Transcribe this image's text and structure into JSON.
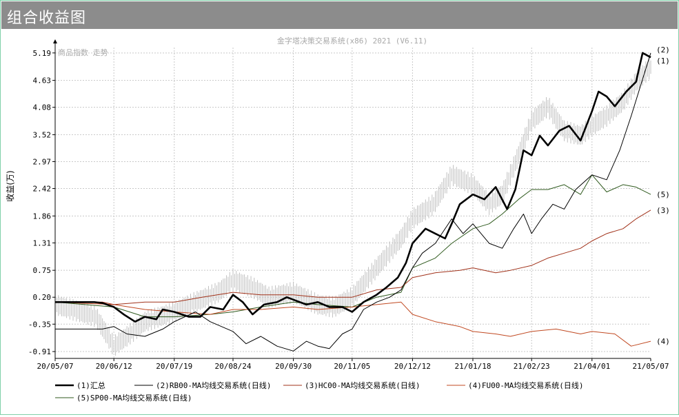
{
  "window": {
    "title": "组合收益图"
  },
  "chart_data": {
    "type": "line",
    "title": "金字塔决策交易系统(x86) 2021 (V6.11)",
    "subtitle": "商品指数 走势",
    "ylabel": "收益(万)",
    "ylim": [
      -1.05,
      5.3
    ],
    "yticks": [
      "5.19",
      "4.63",
      "4.08",
      "3.52",
      "2.97",
      "2.42",
      "1.86",
      "1.31",
      "0.75",
      "0.20",
      "-0.35",
      "-0.91"
    ],
    "xlim": [
      "2020-05-07",
      "2021-05-07"
    ],
    "xticks": [
      {
        "label": "20/05/07",
        "date": "2020-05-07"
      },
      {
        "label": "20/06/12",
        "date": "2020-06-12"
      },
      {
        "label": "20/07/19",
        "date": "2020-07-19"
      },
      {
        "label": "20/08/24",
        "date": "2020-08-24"
      },
      {
        "label": "20/09/30",
        "date": "2020-09-30"
      },
      {
        "label": "20/11/05",
        "date": "2020-11-05"
      },
      {
        "label": "20/12/12",
        "date": "2020-12-12"
      },
      {
        "label": "21/01/18",
        "date": "2021-01-18"
      },
      {
        "label": "21/02/23",
        "date": "2021-02-23"
      },
      {
        "label": "21/04/01",
        "date": "2021-04-01"
      },
      {
        "label": "21/05/07",
        "date": "2021-05-07"
      }
    ],
    "grid": true,
    "legend_position": "bottom",
    "index_series": {
      "color": "#c0c0c0",
      "x": [
        "2020-05-07",
        "2020-06-01",
        "2020-06-12",
        "2020-06-20",
        "2020-07-01",
        "2020-07-19",
        "2020-08-01",
        "2020-08-15",
        "2020-08-24",
        "2020-09-05",
        "2020-09-15",
        "2020-09-30",
        "2020-10-15",
        "2020-10-25",
        "2020-11-05",
        "2020-11-15",
        "2020-11-25",
        "2020-12-05",
        "2020-12-12",
        "2020-12-25",
        "2021-01-05",
        "2021-01-18",
        "2021-01-28",
        "2021-02-05",
        "2021-02-15",
        "2021-02-23",
        "2021-03-05",
        "2021-03-15",
        "2021-03-25",
        "2021-04-01",
        "2021-04-10",
        "2021-04-20",
        "2021-04-28",
        "2021-05-07"
      ],
      "y": [
        0.05,
        -0.2,
        -0.8,
        -0.6,
        -0.3,
        -0.1,
        0.1,
        0.3,
        0.55,
        0.4,
        0.2,
        0.3,
        0.05,
        0.0,
        0.2,
        0.6,
        1.0,
        1.4,
        1.8,
        2.1,
        2.7,
        2.5,
        2.1,
        2.3,
        3.1,
        3.8,
        4.1,
        3.6,
        3.5,
        3.7,
        3.9,
        4.2,
        4.6,
        4.9
      ]
    },
    "series": [
      {
        "name": "(1)汇总",
        "end_label": "(1)",
        "color": "#000000",
        "width": 2.6,
        "x": [
          "2020-05-07",
          "2020-05-31",
          "2020-06-05",
          "2020-06-12",
          "2020-06-18",
          "2020-06-25",
          "2020-07-01",
          "2020-07-08",
          "2020-07-12",
          "2020-07-19",
          "2020-07-28",
          "2020-08-04",
          "2020-08-10",
          "2020-08-18",
          "2020-08-24",
          "2020-08-30",
          "2020-09-05",
          "2020-09-12",
          "2020-09-20",
          "2020-09-26",
          "2020-09-30",
          "2020-10-08",
          "2020-10-15",
          "2020-10-22",
          "2020-10-30",
          "2020-11-05",
          "2020-11-12",
          "2020-11-20",
          "2020-11-26",
          "2020-12-03",
          "2020-12-08",
          "2020-12-12",
          "2020-12-20",
          "2020-12-26",
          "2021-01-01",
          "2021-01-05",
          "2021-01-10",
          "2021-01-18",
          "2021-01-25",
          "2021-02-01",
          "2021-02-08",
          "2021-02-13",
          "2021-02-18",
          "2021-02-23",
          "2021-02-28",
          "2021-03-05",
          "2021-03-12",
          "2021-03-18",
          "2021-03-25",
          "2021-04-01",
          "2021-04-05",
          "2021-04-10",
          "2021-04-15",
          "2021-04-22",
          "2021-04-28",
          "2021-05-02",
          "2021-05-07"
        ],
        "y": [
          0.1,
          0.1,
          0.08,
          0.0,
          -0.15,
          -0.3,
          -0.2,
          -0.25,
          -0.05,
          -0.1,
          -0.2,
          -0.2,
          0.0,
          -0.05,
          0.25,
          0.1,
          -0.15,
          0.05,
          0.1,
          0.2,
          0.15,
          0.05,
          0.1,
          0.0,
          0.0,
          -0.1,
          0.1,
          0.25,
          0.4,
          0.6,
          0.9,
          1.3,
          1.6,
          1.5,
          1.4,
          1.7,
          2.1,
          2.3,
          2.2,
          2.45,
          2.0,
          2.4,
          3.2,
          3.1,
          3.5,
          3.3,
          3.6,
          3.7,
          3.4,
          4.0,
          4.4,
          4.3,
          4.1,
          4.4,
          4.6,
          5.19,
          5.1
        ]
      },
      {
        "name": "(2)RB00-MA均线交易系统(日线)",
        "end_label": "(2)",
        "color": "#000000",
        "width": 1,
        "x": [
          "2020-05-07",
          "2020-06-05",
          "2020-06-12",
          "2020-06-20",
          "2020-07-01",
          "2020-07-12",
          "2020-07-19",
          "2020-08-01",
          "2020-08-10",
          "2020-08-24",
          "2020-09-01",
          "2020-09-10",
          "2020-09-20",
          "2020-09-30",
          "2020-10-08",
          "2020-10-15",
          "2020-10-22",
          "2020-10-30",
          "2020-11-05",
          "2020-11-12",
          "2020-11-20",
          "2020-11-28",
          "2020-12-05",
          "2020-12-12",
          "2020-12-18",
          "2020-12-26",
          "2021-01-05",
          "2021-01-12",
          "2021-01-18",
          "2021-01-28",
          "2021-02-05",
          "2021-02-12",
          "2021-02-18",
          "2021-02-23",
          "2021-03-01",
          "2021-03-08",
          "2021-03-15",
          "2021-03-22",
          "2021-04-01",
          "2021-04-10",
          "2021-04-18",
          "2021-04-25",
          "2021-05-07"
        ],
        "y": [
          -0.45,
          -0.45,
          -0.4,
          -0.55,
          -0.6,
          -0.45,
          -0.3,
          -0.1,
          -0.3,
          -0.5,
          -0.75,
          -0.6,
          -0.8,
          -0.9,
          -0.7,
          -0.8,
          -0.85,
          -0.55,
          -0.45,
          -0.05,
          0.1,
          0.2,
          0.35,
          0.8,
          1.1,
          1.3,
          1.8,
          1.5,
          1.7,
          1.3,
          1.2,
          1.6,
          1.9,
          1.5,
          1.8,
          2.1,
          2.0,
          2.4,
          2.7,
          2.6,
          3.2,
          3.9,
          5.19
        ]
      },
      {
        "name": "(3)HC00-MA均线交易系统(日线)",
        "end_label": "(3)",
        "color": "#a03018",
        "width": 1,
        "x": [
          "2020-05-07",
          "2020-06-05",
          "2020-06-12",
          "2020-07-01",
          "2020-07-19",
          "2020-08-05",
          "2020-08-24",
          "2020-09-10",
          "2020-09-30",
          "2020-10-15",
          "2020-11-05",
          "2020-11-20",
          "2020-12-05",
          "2020-12-12",
          "2020-12-26",
          "2021-01-10",
          "2021-01-18",
          "2021-02-01",
          "2021-02-10",
          "2021-02-23",
          "2021-03-05",
          "2021-03-15",
          "2021-03-25",
          "2021-04-01",
          "2021-04-10",
          "2021-04-20",
          "2021-04-28",
          "2021-05-07"
        ],
        "y": [
          0.1,
          0.1,
          0.05,
          0.1,
          0.1,
          0.2,
          0.3,
          0.25,
          0.25,
          0.2,
          0.2,
          0.35,
          0.4,
          0.6,
          0.7,
          0.75,
          0.8,
          0.7,
          0.75,
          0.85,
          1.0,
          1.1,
          1.2,
          1.35,
          1.5,
          1.6,
          1.8,
          1.98
        ]
      },
      {
        "name": "(4)FU00-MA均线交易系统(日线)",
        "end_label": "(4)",
        "color": "#c04820",
        "width": 1,
        "x": [
          "2020-05-07",
          "2020-06-12",
          "2020-07-01",
          "2020-07-19",
          "2020-08-10",
          "2020-08-24",
          "2020-09-10",
          "2020-09-30",
          "2020-10-15",
          "2020-11-05",
          "2020-11-20",
          "2020-12-05",
          "2020-12-12",
          "2020-12-26",
          "2021-01-10",
          "2021-01-18",
          "2021-02-01",
          "2021-02-10",
          "2021-02-23",
          "2021-03-10",
          "2021-03-25",
          "2021-04-01",
          "2021-04-15",
          "2021-04-25",
          "2021-05-07"
        ],
        "y": [
          0.1,
          0.05,
          -0.05,
          -0.1,
          -0.15,
          -0.05,
          -0.05,
          0.0,
          -0.05,
          0.0,
          0.05,
          0.1,
          -0.15,
          -0.3,
          -0.4,
          -0.5,
          -0.55,
          -0.6,
          -0.5,
          -0.45,
          -0.55,
          -0.5,
          -0.55,
          -0.8,
          -0.7
        ]
      },
      {
        "name": "(5)SP00-MA均线交易系统(日线)",
        "end_label": "(5)",
        "color": "#2f5a1e",
        "width": 1,
        "x": [
          "2020-05-07",
          "2020-06-12",
          "2020-07-01",
          "2020-07-19",
          "2020-08-10",
          "2020-08-24",
          "2020-09-10",
          "2020-09-30",
          "2020-10-15",
          "2020-11-05",
          "2020-11-20",
          "2020-12-05",
          "2020-12-12",
          "2020-12-26",
          "2021-01-05",
          "2021-01-18",
          "2021-01-28",
          "2021-02-05",
          "2021-02-15",
          "2021-02-23",
          "2021-03-05",
          "2021-03-15",
          "2021-03-25",
          "2021-04-01",
          "2021-04-10",
          "2021-04-20",
          "2021-04-28",
          "2021-05-07"
        ],
        "y": [
          0.1,
          0.0,
          -0.2,
          -0.2,
          -0.15,
          -0.1,
          0.0,
          0.1,
          0.05,
          0.0,
          0.2,
          0.3,
          0.8,
          1.0,
          1.3,
          1.6,
          1.7,
          1.9,
          2.2,
          2.4,
          2.4,
          2.5,
          2.3,
          2.7,
          2.35,
          2.5,
          2.45,
          2.3
        ]
      }
    ]
  }
}
